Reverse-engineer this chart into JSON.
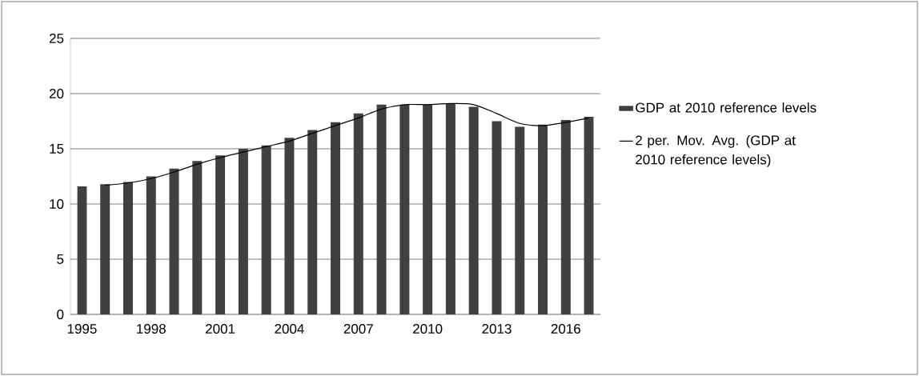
{
  "chart_data": {
    "type": "bar",
    "categories": [
      "1995",
      null,
      null,
      "1998",
      null,
      null,
      "2001",
      null,
      null,
      "2004",
      null,
      null,
      "2007",
      null,
      null,
      "2010",
      null,
      null,
      "2013",
      null,
      null,
      "2016",
      null
    ],
    "series": [
      {
        "name": "GDP at 2010 reference levels",
        "color": "#404040",
        "values": [
          11.6,
          11.8,
          12.0,
          12.5,
          13.2,
          13.9,
          14.4,
          15.0,
          15.3,
          16.0,
          16.7,
          17.4,
          18.2,
          19.0,
          19.0,
          19.0,
          19.1,
          18.8,
          17.5,
          17.0,
          17.2,
          17.6,
          17.9
        ]
      },
      {
        "name": "2 per. Mov. Avg. (GDP at 2010 reference levels)",
        "type": "line",
        "color": "#000000",
        "values": [
          null,
          11.7,
          11.9,
          12.3,
          12.9,
          13.6,
          14.2,
          14.7,
          15.2,
          15.7,
          16.4,
          17.1,
          17.8,
          18.6,
          19.0,
          19.0,
          19.1,
          19.0,
          18.2,
          17.3,
          17.1,
          17.4,
          17.8
        ]
      }
    ],
    "ylim": [
      0,
      25
    ],
    "yticks": [
      0,
      5,
      10,
      15,
      20,
      25
    ],
    "grid": "y",
    "legend": "right"
  }
}
